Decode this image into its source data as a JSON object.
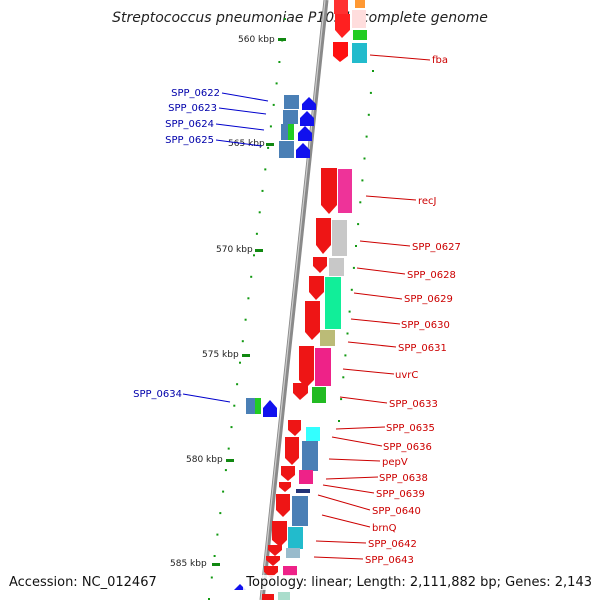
{
  "title": "Streptococcus pneumoniae P1031, complete genome",
  "accession": "Accession: NC_012467",
  "footer": "Topology: linear; Length: 2,111,882 bp; Genes: 2,143",
  "kbp_ticks": [
    "560 kbp",
    "565 kbp",
    "570 kbp",
    "575 kbp",
    "580 kbp",
    "585 kbp"
  ],
  "left_labels": [
    "SPP_0622",
    "SPP_0623",
    "SPP_0624",
    "SPP_0625",
    "SPP_0634"
  ],
  "right_labels": [
    "fba",
    "recJ",
    "SPP_0627",
    "SPP_0628",
    "SPP_0629",
    "SPP_0630",
    "SPP_0631",
    "uvrC",
    "SPP_0633",
    "SPP_0635",
    "SPP_0636",
    "pepV",
    "SPP_0638",
    "SPP_0639",
    "SPP_0640",
    "brnQ",
    "SPP_0642",
    "SPP_0643"
  ],
  "colors": {
    "forward_strand": "#ee1111",
    "reverse_strand": "#0000ee",
    "right_label": "#cc0000",
    "left_label": "#0000aa",
    "backbone": "#888888",
    "tick": "#118811"
  }
}
